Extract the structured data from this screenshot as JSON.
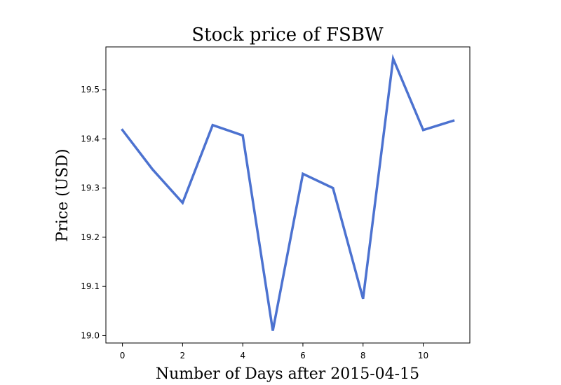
{
  "chart_data": {
    "type": "line",
    "title": "Stock price of FSBW",
    "xlabel": "Number of Days after 2015-04-15",
    "ylabel": "Price (USD)",
    "x": [
      0,
      1,
      2,
      3,
      4,
      5,
      6,
      7,
      8,
      9,
      10,
      11
    ],
    "series": [
      {
        "values": [
          19.418,
          19.338,
          19.27,
          19.428,
          19.407,
          19.01,
          19.329,
          19.3,
          19.075,
          19.563,
          19.418,
          19.437
        ],
        "color": "#4c72d0"
      }
    ],
    "xlim": [
      -0.55,
      11.55
    ],
    "ylim": [
      18.985,
      19.587
    ],
    "xticks": [
      0,
      2,
      4,
      6,
      8,
      10
    ],
    "xtick_labels": [
      "0",
      "2",
      "4",
      "6",
      "8",
      "10"
    ],
    "yticks": [
      19.0,
      19.1,
      19.2,
      19.3,
      19.4,
      19.5
    ],
    "ytick_labels": [
      "19.0",
      "19.1",
      "19.2",
      "19.3",
      "19.4",
      "19.5"
    ],
    "grid": false,
    "legend": "none"
  }
}
